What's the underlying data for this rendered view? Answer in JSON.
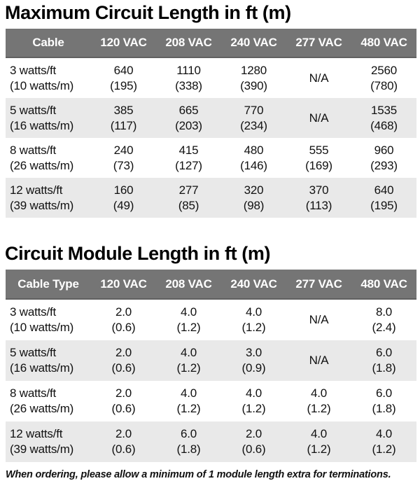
{
  "colors": {
    "header_bg": "#757575",
    "header_text": "#ffffff",
    "alt_row_bg": "#e9e9e9",
    "body_text": "#111111"
  },
  "tables": [
    {
      "title": "Maximum Circuit Length in ft (m)",
      "columns": [
        "Cable",
        "120 VAC",
        "208 VAC",
        "240 VAC",
        "277 VAC",
        "480 VAC"
      ],
      "rows": [
        {
          "label": [
            "3 watts/ft",
            "(10 watts/m)"
          ],
          "cells": [
            [
              "640",
              "(195)"
            ],
            [
              "1110",
              "(338)"
            ],
            [
              "1280",
              "(390)"
            ],
            [
              "N/A",
              ""
            ],
            [
              "2560",
              "(780)"
            ]
          ]
        },
        {
          "label": [
            "5 watts/ft",
            "(16 watts/m)"
          ],
          "cells": [
            [
              "385",
              "(117)"
            ],
            [
              "665",
              "(203)"
            ],
            [
              "770",
              "(234)"
            ],
            [
              "N/A",
              ""
            ],
            [
              "1535",
              "(468)"
            ]
          ]
        },
        {
          "label": [
            "8 watts/ft",
            "(26 watts/m)"
          ],
          "cells": [
            [
              "240",
              "(73)"
            ],
            [
              "415",
              "(127)"
            ],
            [
              "480",
              "(146)"
            ],
            [
              "555",
              "(169)"
            ],
            [
              "960",
              "(293)"
            ]
          ]
        },
        {
          "label": [
            "12 watts/ft",
            "(39 watts/m)"
          ],
          "cells": [
            [
              "160",
              "(49)"
            ],
            [
              "277",
              "(85)"
            ],
            [
              "320",
              "(98)"
            ],
            [
              "370",
              "(113)"
            ],
            [
              "640",
              "(195)"
            ]
          ]
        }
      ]
    },
    {
      "title": "Circuit Module Length in ft (m)",
      "columns": [
        "Cable Type",
        "120 VAC",
        "208 VAC",
        "240 VAC",
        "277 VAC",
        "480 VAC"
      ],
      "rows": [
        {
          "label": [
            "3 watts/ft",
            "(10 watts/m)"
          ],
          "cells": [
            [
              "2.0",
              "(0.6)"
            ],
            [
              "4.0",
              "(1.2)"
            ],
            [
              "4.0",
              "(1.2)"
            ],
            [
              "N/A",
              ""
            ],
            [
              "8.0",
              "(2.4)"
            ]
          ]
        },
        {
          "label": [
            "5 watts/ft",
            "(16 watts/m)"
          ],
          "cells": [
            [
              "2.0",
              "(0.6)"
            ],
            [
              "4.0",
              "(1.2)"
            ],
            [
              "3.0",
              "(0.9)"
            ],
            [
              "N/A",
              ""
            ],
            [
              "6.0",
              "(1.8)"
            ]
          ]
        },
        {
          "label": [
            "8 watts/ft",
            "(26 watts/m)"
          ],
          "cells": [
            [
              "2.0",
              "(0.6)"
            ],
            [
              "4.0",
              "(1.2)"
            ],
            [
              "4.0",
              "(1.2)"
            ],
            [
              "4.0",
              "(1.2)"
            ],
            [
              "6.0",
              "(1.8)"
            ]
          ]
        },
        {
          "label": [
            "12 watts/ft",
            "(39 watts/m)"
          ],
          "cells": [
            [
              "2.0",
              "(0.6)"
            ],
            [
              "6.0",
              "(1.8)"
            ],
            [
              "2.0",
              "(0.6)"
            ],
            [
              "4.0",
              "(1.2)"
            ],
            [
              "4.0",
              "(1.2)"
            ]
          ]
        }
      ]
    }
  ],
  "footer_note": "When ordering, please allow a minimum of 1 module length extra for terminations."
}
